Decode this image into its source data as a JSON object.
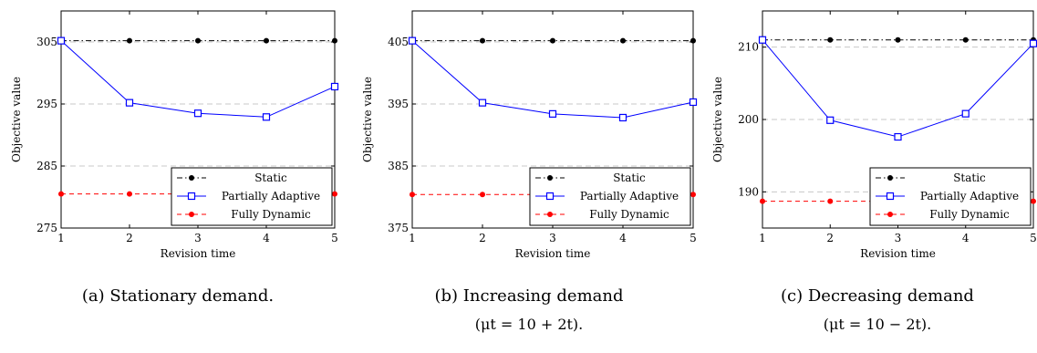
{
  "chart_data": [
    {
      "type": "line",
      "x": [
        1,
        2,
        3,
        4,
        5
      ],
      "xlabel": "Revision time",
      "ylabel": "Objective value",
      "xlim": [
        1,
        5
      ],
      "ylim": [
        275,
        310
      ],
      "yticks": [
        275,
        285,
        295,
        305
      ],
      "ygrid": [
        285,
        295,
        305
      ],
      "legend_position": "lower-right",
      "series": [
        {
          "name": "Static",
          "values": [
            305.2,
            305.2,
            305.2,
            305.2,
            305.2
          ],
          "color": "#000000",
          "linestyle": "dashdot",
          "marker": "circle"
        },
        {
          "name": "Partially Adaptive",
          "values": [
            305.2,
            295.2,
            293.5,
            292.9,
            297.8
          ],
          "color": "#0000ff",
          "linestyle": "solid",
          "marker": "square"
        },
        {
          "name": "Fully Dynamic",
          "values": [
            280.5,
            280.5,
            280.5,
            280.5,
            280.5
          ],
          "color": "#ff0000",
          "linestyle": "dashed",
          "marker": "circle"
        }
      ],
      "caption": "(a) Stationary demand.",
      "caption_line2": ""
    },
    {
      "type": "line",
      "x": [
        1,
        2,
        3,
        4,
        5
      ],
      "xlabel": "Revision time",
      "ylabel": "Objective value",
      "xlim": [
        1,
        5
      ],
      "ylim": [
        375,
        410
      ],
      "yticks": [
        375,
        385,
        395,
        405
      ],
      "ygrid": [
        385,
        395,
        405
      ],
      "legend_position": "lower-right",
      "series": [
        {
          "name": "Static",
          "values": [
            405.2,
            405.2,
            405.2,
            405.2,
            405.2
          ],
          "color": "#000000",
          "linestyle": "dashdot",
          "marker": "circle"
        },
        {
          "name": "Partially Adaptive",
          "values": [
            405.2,
            395.2,
            393.4,
            392.8,
            395.3
          ],
          "color": "#0000ff",
          "linestyle": "solid",
          "marker": "square"
        },
        {
          "name": "Fully Dynamic",
          "values": [
            380.4,
            380.4,
            380.4,
            380.4,
            380.4
          ],
          "color": "#ff0000",
          "linestyle": "dashed",
          "marker": "circle"
        }
      ],
      "caption": "(b) Increasing demand",
      "caption_line2": "(μt = 10 + 2t)."
    },
    {
      "type": "line",
      "x": [
        1,
        2,
        3,
        4,
        5
      ],
      "xlabel": "Revision time",
      "ylabel": "Objective value",
      "xlim": [
        1,
        5
      ],
      "ylim": [
        185,
        215
      ],
      "yticks": [
        190,
        200,
        210
      ],
      "ygrid": [
        190,
        200,
        210
      ],
      "legend_position": "lower-right",
      "series": [
        {
          "name": "Static",
          "values": [
            211,
            211,
            211,
            211,
            211
          ],
          "color": "#000000",
          "linestyle": "dashdot",
          "marker": "circle"
        },
        {
          "name": "Partially Adaptive",
          "values": [
            211,
            199.9,
            197.6,
            200.8,
            210.5
          ],
          "color": "#0000ff",
          "linestyle": "solid",
          "marker": "square"
        },
        {
          "name": "Fully Dynamic",
          "values": [
            188.7,
            188.7,
            188.7,
            188.7,
            188.7
          ],
          "color": "#ff0000",
          "linestyle": "dashed",
          "marker": "circle"
        }
      ],
      "caption": "(c) Decreasing demand",
      "caption_line2": "(μt = 10 − 2t)."
    }
  ]
}
